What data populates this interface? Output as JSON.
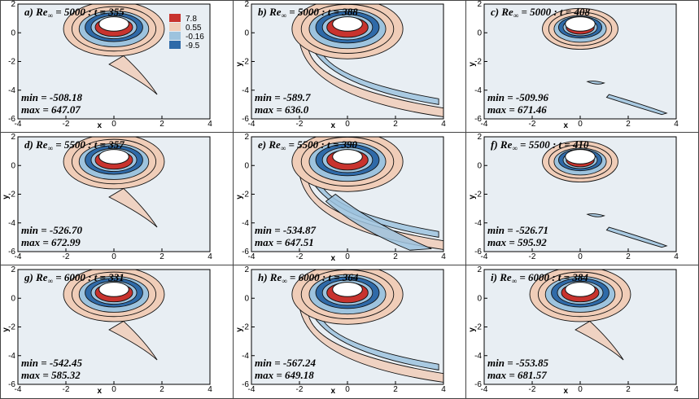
{
  "chart_data": {
    "type": "heatmap",
    "xlim": [
      -4,
      4
    ],
    "ylim": [
      -6,
      2
    ],
    "x_ticks": [
      -4,
      -2,
      0,
      2,
      4
    ],
    "y_ticks": [
      2,
      0,
      -2,
      -4,
      -6
    ],
    "x_tick_labels": [
      "-4",
      "-2",
      "0",
      "2",
      "4"
    ],
    "y_tick_labels": [
      "2",
      "0",
      "-2",
      "-4",
      "-6"
    ],
    "xlabel": "x",
    "ylabel": "y",
    "legend": {
      "placement": "top-right of first panel",
      "levels": [
        {
          "label": "7.8",
          "color": "#c8332e"
        },
        {
          "label": "0.55",
          "color": "#f0cdb8"
        },
        {
          "label": "-0.16",
          "color": "#9dc3de"
        },
        {
          "label": "-9.5",
          "color": "#2f6aa8"
        }
      ]
    },
    "panels": [
      {
        "title_prefix": "a) Re",
        "title_sub": "∞",
        "title_rest": " = 5000 : t = 355",
        "min_text": "min = -508.18",
        "max_text": "max = 647.07",
        "show_xlabel": true,
        "show_ylabel": false,
        "pattern": "compact"
      },
      {
        "title_prefix": "b) Re",
        "title_sub": "∞",
        "title_rest": " = 5000 : t = 388",
        "min_text": "min = -589.7",
        "max_text": "max = 636.0",
        "show_xlabel": true,
        "show_ylabel": true,
        "pattern": "shed"
      },
      {
        "title_prefix": "c) Re",
        "title_sub": "∞",
        "title_rest": " = 5000 : t =  408",
        "min_text": "min = -509.96",
        "max_text": "max = 671.46",
        "show_xlabel": true,
        "show_ylabel": true,
        "pattern": "detached"
      },
      {
        "title_prefix": "d) Re",
        "title_sub": "∞",
        "title_rest": " = 5500 : t = 357",
        "min_text": "min = -526.70",
        "max_text": "max = 672.99",
        "show_xlabel": false,
        "show_ylabel": true,
        "pattern": "compact"
      },
      {
        "title_prefix": "e) Re",
        "title_sub": "∞",
        "title_rest": " = 5500 : t = 390",
        "min_text": "min = -534.87",
        "max_text": "max = 647.51",
        "show_xlabel": true,
        "show_ylabel": true,
        "pattern": "shed2"
      },
      {
        "title_prefix": "f) Re",
        "title_sub": "∞",
        "title_rest": " = 5500 : t = 410",
        "min_text": "min = -526.71",
        "max_text": "max = 595.92",
        "show_xlabel": false,
        "show_ylabel": true,
        "pattern": "detached2"
      },
      {
        "title_prefix": "g) Re",
        "title_sub": "∞",
        "title_rest": " = 6000 : t = 331",
        "min_text": "min = -542.45",
        "max_text": "max = 585.32",
        "show_xlabel": true,
        "show_ylabel": true,
        "pattern": "compact"
      },
      {
        "title_prefix": "h) Re",
        "title_sub": "∞",
        "title_rest": " = 6000 : t = 364",
        "min_text": "min = -567.24",
        "max_text": "max = 649.18",
        "show_xlabel": true,
        "show_ylabel": true,
        "pattern": "shed"
      },
      {
        "title_prefix": "i) Re",
        "title_sub": "∞",
        "title_rest": " = 6000 : t = 384",
        "min_text": "min = -553.85",
        "max_text": "max = 681.57",
        "show_xlabel": true,
        "show_ylabel": true,
        "pattern": "compact2"
      }
    ]
  },
  "colors": {
    "background": "#e8eef3",
    "positive_strong": "#c8332e",
    "positive_weak": "#f0cdb8",
    "negative_weak": "#9dc3de",
    "negative_strong": "#2f6aa8",
    "contour": "#111111",
    "body": "#ffffff",
    "divider": "#444444"
  }
}
